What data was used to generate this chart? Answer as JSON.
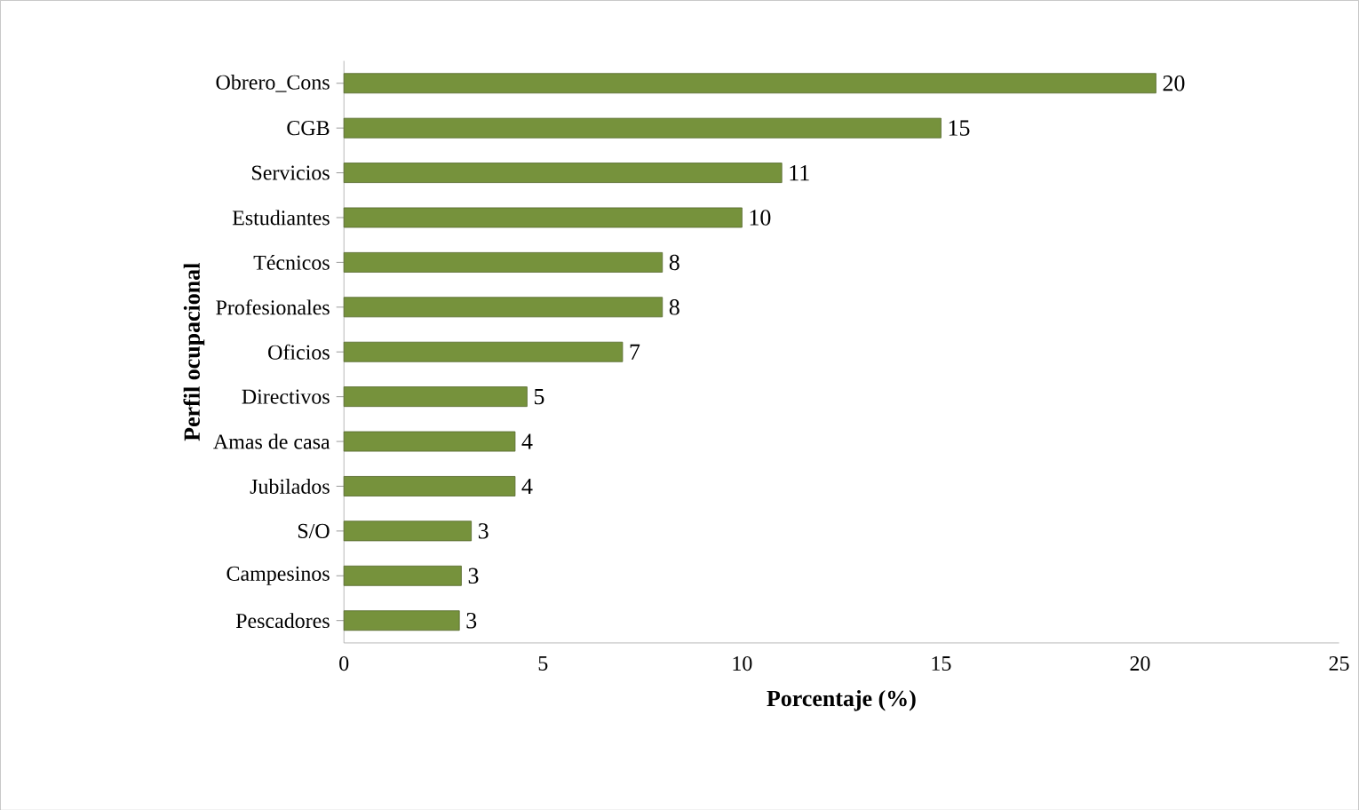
{
  "chart_data": {
    "type": "bar",
    "orientation": "horizontal",
    "xlabel": "Porcentaje (%)",
    "ylabel": "Perfil ocupacional",
    "categories": [
      "Obrero_Cons",
      "CGB",
      "Servicios",
      "Estudiantes",
      "Técnicos",
      "Profesionales",
      "Oficios",
      "Directivos",
      "Amas de casa",
      "Jubilados",
      "S/O",
      "Campesinos",
      "Pescadores"
    ],
    "values": [
      20.4,
      15.0,
      11.0,
      10.0,
      8.0,
      8.0,
      7.0,
      4.6,
      4.3,
      4.3,
      3.2,
      2.95,
      2.9
    ],
    "value_labels": [
      "20",
      "15",
      "11",
      "10",
      "8",
      "8",
      "7",
      "5",
      "4",
      "4",
      "3",
      "3",
      "3"
    ],
    "color": "#76923c",
    "xlim": [
      0,
      25
    ],
    "xticks": [
      0,
      5,
      10,
      15,
      20,
      25
    ]
  }
}
